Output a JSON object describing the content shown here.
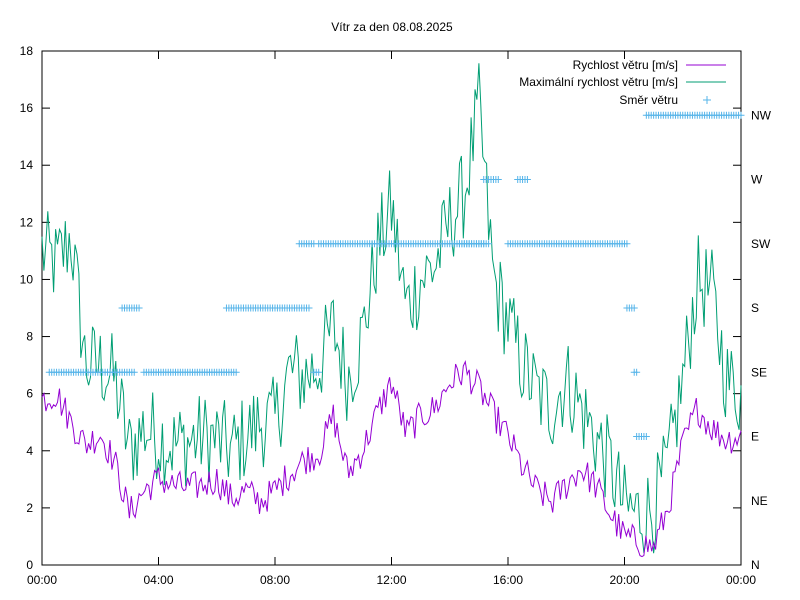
{
  "chart_data": {
    "type": "line",
    "title": "Vítr za den 08.08.2025",
    "xlabel": "",
    "ylabel": "",
    "xlim": [
      "00:00",
      "24:00"
    ],
    "ylim": [
      0,
      18
    ],
    "grid": false,
    "legend_position": "top-right",
    "x_ticks": [
      "00:00",
      "04:00",
      "08:00",
      "12:00",
      "16:00",
      "20:00",
      "00:00"
    ],
    "y_ticks": [
      "0",
      "2",
      "4",
      "6",
      "8",
      "10",
      "12",
      "14",
      "16",
      "18"
    ],
    "y2_ticks": [
      "N",
      "NE",
      "E",
      "SE",
      "S",
      "SW",
      "W",
      "NW"
    ],
    "y2lim": [
      0,
      8
    ],
    "series": [
      {
        "name": "Rychlost větru [m/s]",
        "color": "#9400d3",
        "style": "line",
        "x": [
          "00:00",
          "00:30",
          "01:00",
          "01:30",
          "02:00",
          "02:30",
          "03:00",
          "03:30",
          "04:00",
          "04:30",
          "05:00",
          "05:30",
          "06:00",
          "06:30",
          "07:00",
          "07:30",
          "08:00",
          "08:30",
          "09:00",
          "09:30",
          "10:00",
          "10:30",
          "11:00",
          "11:30",
          "12:00",
          "12:30",
          "13:00",
          "13:30",
          "14:00",
          "14:30",
          "15:00",
          "15:30",
          "16:00",
          "16:30",
          "17:00",
          "17:30",
          "18:00",
          "18:30",
          "19:00",
          "19:30",
          "20:00",
          "20:30",
          "21:00",
          "21:30",
          "22:00",
          "22:30",
          "23:00",
          "23:30",
          "24:00"
        ],
        "values": [
          5.8,
          6.0,
          5.0,
          4.2,
          4.6,
          3.6,
          1.8,
          2.6,
          3.0,
          2.8,
          2.7,
          2.8,
          3.0,
          2.3,
          2.6,
          2.2,
          2.6,
          3.2,
          3.7,
          3.9,
          5.2,
          3.2,
          4.0,
          5.3,
          6.4,
          4.6,
          5.2,
          5.5,
          6.4,
          6.8,
          6.2,
          5.3,
          4.5,
          3.4,
          2.6,
          2.2,
          2.8,
          3.4,
          2.8,
          1.8,
          1.0,
          0.8,
          0.6,
          2.0,
          4.2,
          5.5,
          4.8,
          4.4,
          4.5
        ]
      },
      {
        "name": "Maximální rychlost větru [m/s]",
        "color": "#009e73",
        "style": "line",
        "x": [
          "00:00",
          "00:30",
          "01:00",
          "01:30",
          "02:00",
          "02:30",
          "03:00",
          "03:30",
          "04:00",
          "04:30",
          "05:00",
          "05:30",
          "06:00",
          "06:30",
          "07:00",
          "07:30",
          "08:00",
          "08:30",
          "09:00",
          "09:30",
          "10:00",
          "10:30",
          "11:00",
          "11:30",
          "12:00",
          "12:30",
          "13:00",
          "13:30",
          "14:00",
          "14:30",
          "15:00",
          "15:30",
          "16:00",
          "16:30",
          "17:00",
          "17:30",
          "18:00",
          "18:30",
          "19:00",
          "19:30",
          "20:00",
          "20:30",
          "21:00",
          "21:30",
          "22:00",
          "22:30",
          "23:00",
          "23:30",
          "24:00"
        ],
        "values": [
          11.0,
          10.5,
          11.5,
          7.0,
          7.0,
          6.5,
          4.0,
          4.8,
          4.5,
          4.2,
          4.3,
          4.5,
          4.4,
          4.0,
          4.5,
          5.0,
          5.0,
          6.8,
          6.6,
          7.0,
          8.3,
          6.5,
          8.0,
          11.0,
          12.5,
          9.0,
          10.0,
          10.5,
          12.0,
          13.0,
          16.0,
          10.0,
          8.5,
          7.0,
          6.0,
          5.5,
          6.5,
          5.5,
          4.5,
          3.5,
          2.0,
          1.8,
          2.0,
          3.5,
          6.5,
          10.0,
          9.5,
          6.5,
          6.0
        ]
      },
      {
        "name": "Směr větru",
        "color": "#56b4e9",
        "style": "points",
        "axis": "y2",
        "segments": [
          {
            "from": "00:15",
            "to": "03:10",
            "value": "SE"
          },
          {
            "from": "02:45",
            "to": "03:20",
            "value": "S"
          },
          {
            "from": "03:30",
            "to": "06:40",
            "value": "SE"
          },
          {
            "from": "06:20",
            "to": "09:10",
            "value": "S"
          },
          {
            "from": "08:50",
            "to": "09:20",
            "value": "SW"
          },
          {
            "from": "09:20",
            "to": "09:30",
            "value": "SE"
          },
          {
            "from": "09:30",
            "to": "15:10",
            "value": "SW"
          },
          {
            "from": "14:20",
            "to": "15:20",
            "value": "SW"
          },
          {
            "from": "15:10",
            "to": "15:40",
            "value": "W"
          },
          {
            "from": "16:20",
            "to": "16:40",
            "value": "W"
          },
          {
            "from": "16:00",
            "to": "20:05",
            "value": "SW"
          },
          {
            "from": "20:05",
            "to": "20:20",
            "value": "S"
          },
          {
            "from": "20:20",
            "to": "20:25",
            "value": "SE"
          },
          {
            "from": "20:25",
            "to": "20:45",
            "value": "E"
          },
          {
            "from": "20:45",
            "to": "24:00",
            "value": "NW"
          }
        ]
      }
    ]
  }
}
